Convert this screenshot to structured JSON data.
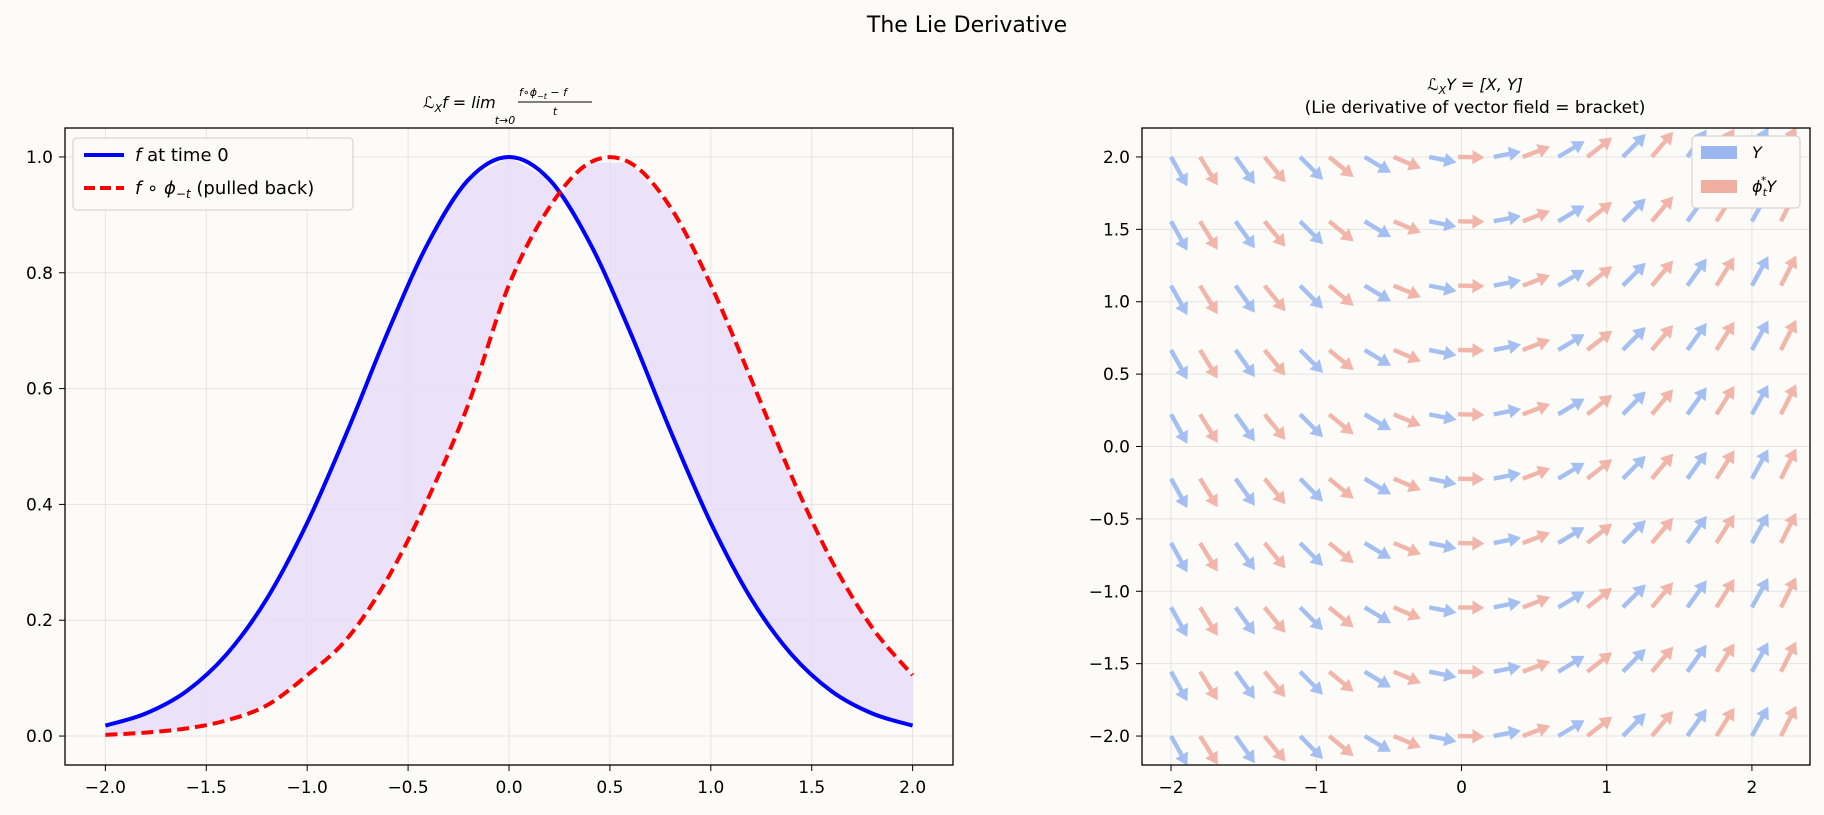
{
  "figure": {
    "title": "The Lie Derivative",
    "background": "#fcfbf7"
  },
  "chart_data": [
    {
      "type": "line",
      "title_parts": {
        "lhs": "ℒ",
        "sub": "X",
        "f": "f = lim",
        "lim_under": "t→0",
        "numer": "f∘ϕ",
        "numer_sub": "−t",
        "numer_rest": " − f",
        "denom": "t"
      },
      "xlim": [
        -2.2,
        2.2
      ],
      "ylim": [
        -0.05,
        1.05
      ],
      "xticks": [
        -2.0,
        -1.5,
        -1.0,
        -0.5,
        0.0,
        0.5,
        1.0,
        1.5,
        2.0
      ],
      "xtick_labels": [
        "−2.0",
        "−1.5",
        "−1.0",
        "−0.5",
        "0.0",
        "0.5",
        "1.0",
        "1.5",
        "2.0"
      ],
      "yticks": [
        0.0,
        0.2,
        0.4,
        0.6,
        0.8,
        1.0
      ],
      "ytick_labels": [
        "0.0",
        "0.2",
        "0.4",
        "0.6",
        "0.8",
        "1.0"
      ],
      "grid": true,
      "legend_position": "upper-left",
      "x": [
        -2.0,
        -1.8,
        -1.6,
        -1.4,
        -1.2,
        -1.0,
        -0.8,
        -0.6,
        -0.4,
        -0.2,
        0.0,
        0.2,
        0.4,
        0.6,
        0.8,
        1.0,
        1.2,
        1.4,
        1.6,
        1.8,
        2.0
      ],
      "series": [
        {
          "name_math": "f",
          "name_rest": " at time 0",
          "color": "#0000ff",
          "style": "solid",
          "values": [
            0.018,
            0.039,
            0.077,
            0.141,
            0.237,
            0.368,
            0.527,
            0.698,
            0.852,
            0.961,
            1.0,
            0.961,
            0.852,
            0.698,
            0.527,
            0.368,
            0.237,
            0.141,
            0.077,
            0.039,
            0.018
          ]
        },
        {
          "name_math": "f ∘ ϕ",
          "name_sub": "−t",
          "name_rest": " (pulled back)",
          "color": "#ff0000",
          "style": "dashed",
          "values": [
            0.002,
            0.006,
            0.013,
            0.027,
            0.053,
            0.105,
            0.169,
            0.273,
            0.411,
            0.574,
            0.779,
            0.913,
            0.99,
            0.99,
            0.913,
            0.779,
            0.616,
            0.449,
            0.302,
            0.187,
            0.105
          ]
        }
      ],
      "fill_between": {
        "color": "#e6dcfa"
      }
    },
    {
      "type": "quiver",
      "title_line1_parts": {
        "lhs": "ℒ",
        "sub": "X",
        "rest": "Y = [X, Y]"
      },
      "title_line2": "(Lie derivative of vector field = bracket)",
      "xlim": [
        -2.2,
        2.4
      ],
      "ylim": [
        -2.2,
        2.2
      ],
      "xticks": [
        -2,
        -1,
        0,
        1,
        2
      ],
      "xtick_labels": [
        "−2",
        "−1",
        "0",
        "1",
        "2"
      ],
      "yticks": [
        -2.0,
        -1.5,
        -1.0,
        -0.5,
        0.0,
        0.5,
        1.0,
        1.5,
        2.0
      ],
      "ytick_labels": [
        "−2.0",
        "−1.5",
        "−1.0",
        "−0.5",
        "0.0",
        "0.5",
        "1.0",
        "1.5",
        "2.0"
      ],
      "grid": true,
      "legend_position": "upper-right",
      "grid_x_range": [
        -2.0,
        2.0
      ],
      "grid_y_range": [
        -2.0,
        2.0
      ],
      "grid_n": 10,
      "shift_x": 0.2,
      "series": [
        {
          "name": "Y",
          "color": "#9ab8ef"
        },
        {
          "name_math": "ϕ",
          "name_sub": "t",
          "name_sup": "*",
          "name_rest": "Y",
          "color": "#efaea0"
        }
      ]
    }
  ]
}
